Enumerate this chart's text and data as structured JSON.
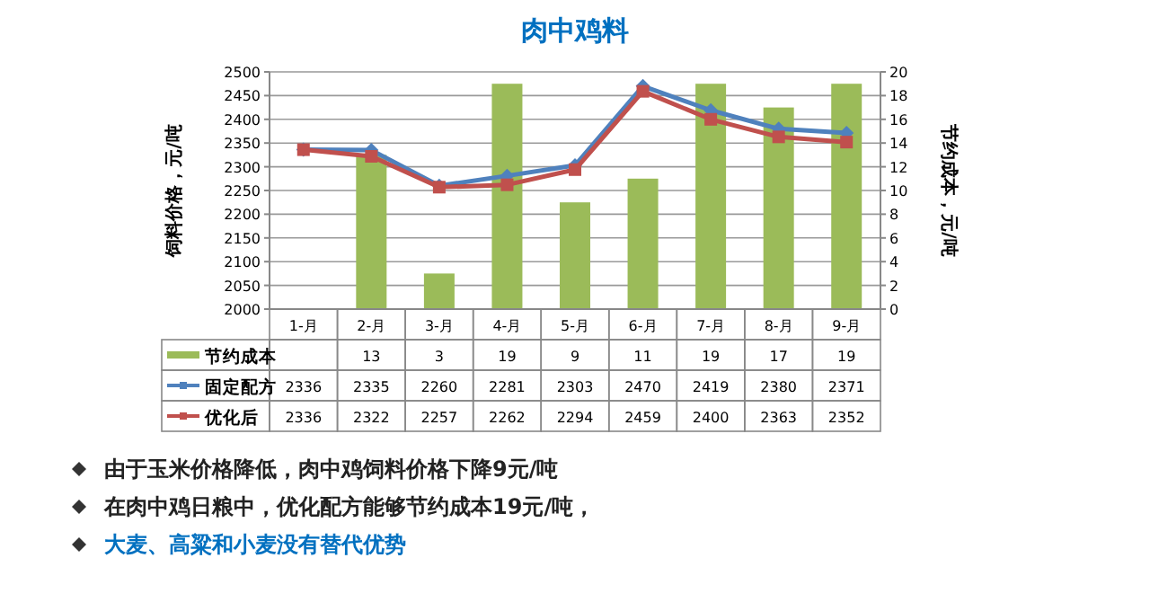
{
  "chart_data": {
    "type": "bar",
    "title": "肉中鸡料",
    "categories": [
      "1-月",
      "2-月",
      "3-月",
      "4-月",
      "5-月",
      "6-月",
      "7-月",
      "8-月",
      "9-月"
    ],
    "series": [
      {
        "name": "节约成本",
        "axis": "y2",
        "color": "#9bbb59",
        "values": [
          null,
          13,
          3,
          19,
          9,
          11,
          19,
          17,
          19
        ]
      },
      {
        "name": "固定配方",
        "type": "line",
        "color": "#4f81bd",
        "marker": "diamond",
        "values": [
          2336,
          2335,
          2260,
          2281,
          2303,
          2470,
          2419,
          2380,
          2371
        ]
      },
      {
        "name": "优化后",
        "type": "line",
        "color": "#c0504d",
        "marker": "square",
        "values": [
          2336,
          2322,
          2257,
          2262,
          2294,
          2459,
          2400,
          2363,
          2352
        ]
      }
    ],
    "ylabel": "饲料价格，元/吨",
    "y2label": "节约成本，元/吨",
    "ylim": [
      2000,
      2500
    ],
    "yticks": [
      2000,
      2050,
      2100,
      2150,
      2200,
      2250,
      2300,
      2350,
      2400,
      2450,
      2500
    ],
    "y2lim": [
      0,
      20
    ],
    "y2ticks": [
      0,
      2,
      4,
      6,
      8,
      10,
      12,
      14,
      16,
      18,
      20
    ],
    "grid": "y",
    "data_labels": true,
    "legend": "bottom",
    "annotations": [
      "由于玉米价格降低，肉中鸡饲料价格下降9元/吨",
      "在肉中鸡日粮中，优化配方能够节约成本19元/吨，",
      "大麦、高粱和小麦没有替代优势"
    ]
  }
}
